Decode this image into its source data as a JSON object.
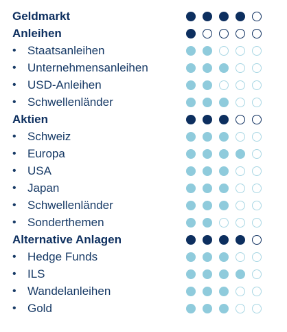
{
  "bullet_char": "•",
  "rows": [
    {
      "label": "Geldmarkt",
      "type": "category",
      "level": 4
    },
    {
      "label": "Anleihen",
      "type": "category",
      "level": 1
    },
    {
      "label": "Staatsanleihen",
      "type": "sub",
      "level": 2
    },
    {
      "label": "Unternehmensanleihen",
      "type": "sub",
      "level": 3
    },
    {
      "label": "USD-Anleihen",
      "type": "sub",
      "level": 2
    },
    {
      "label": "Schwellenländer",
      "type": "sub",
      "level": 3
    },
    {
      "label": "Aktien",
      "type": "category",
      "level": 3
    },
    {
      "label": "Schweiz",
      "type": "sub",
      "level": 3
    },
    {
      "label": "Europa",
      "type": "sub",
      "level": 4
    },
    {
      "label": "USA",
      "type": "sub",
      "level": 3
    },
    {
      "label": "Japan",
      "type": "sub",
      "level": 3
    },
    {
      "label": "Schwellenländer",
      "type": "sub",
      "level": 3
    },
    {
      "label": "Sonderthemen",
      "type": "sub",
      "level": 2
    },
    {
      "label": "Alternative Anlagen",
      "type": "category",
      "level": 4
    },
    {
      "label": "Hedge Funds",
      "type": "sub",
      "level": 3
    },
    {
      "label": "ILS",
      "type": "sub",
      "level": 4
    },
    {
      "label": "Wandelanleihen",
      "type": "sub",
      "level": 3
    },
    {
      "label": "Gold",
      "type": "sub",
      "level": 3
    }
  ],
  "max_level": 5,
  "colors": {
    "category_filled": "#0d2f5f",
    "sub_filled": "#8fcbdc",
    "category_empty_border": "#0d2f5f",
    "sub_empty_border": "#a9d7e4",
    "text": "#0d2f5f"
  }
}
